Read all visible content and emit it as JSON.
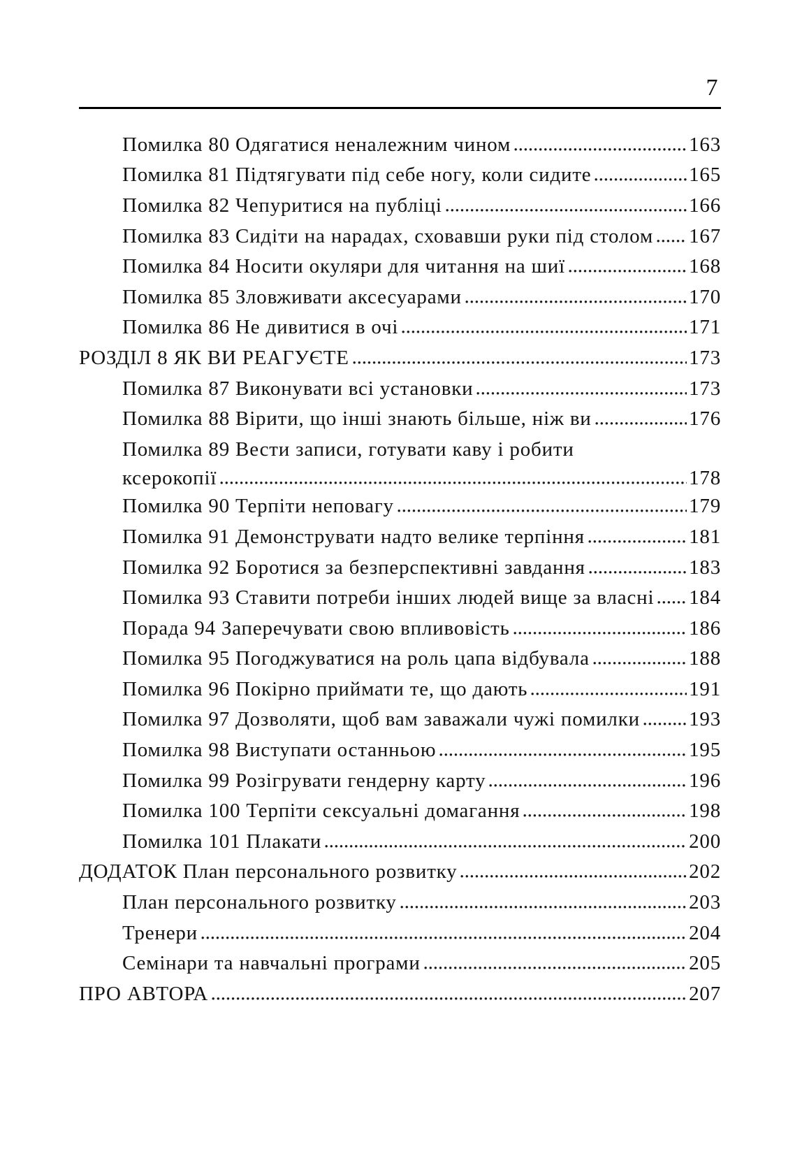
{
  "page_header": {
    "page_number": "7"
  },
  "toc": {
    "entries": [
      {
        "level": 1,
        "text": "Помилка 80 Одягатися неналежним чином",
        "page": "163"
      },
      {
        "level": 1,
        "text": "Помилка 81 Підтягувати під себе ногу, коли сидите",
        "page": "165"
      },
      {
        "level": 1,
        "text": "Помилка 82 Чепуритися на публіці",
        "page": "166"
      },
      {
        "level": 1,
        "text": "Помилка 83 Сидіти на нарадах, сховавши руки під столом",
        "page": "167"
      },
      {
        "level": 1,
        "text": "Помилка 84 Носити окуляри для читання на шиї",
        "page": "168"
      },
      {
        "level": 1,
        "text": "Помилка 85 Зловживати аксесуарами",
        "page": "170"
      },
      {
        "level": 1,
        "text": "Помилка 86 Не дивитися в очі",
        "page": "171"
      },
      {
        "level": 0,
        "text": "РОЗДІЛ 8 ЯК ВИ РЕАГУЄТЕ",
        "page": "173"
      },
      {
        "level": 1,
        "text": "Помилка 87 Виконувати всі установки",
        "page": "173"
      },
      {
        "level": 1,
        "text": "Помилка 88 Вірити, що інші знають більше, ніж ви",
        "page": "176"
      },
      {
        "level": 1,
        "text": "Помилка 89 Вести записи, готувати каву і робити",
        "text_line2": "ксерокопії",
        "page": "178"
      },
      {
        "level": 1,
        "text": "Помилка 90 Терпіти неповагу",
        "page": "179"
      },
      {
        "level": 1,
        "text": "Помилка 91 Демонструвати надто велике терпіння",
        "page": "181"
      },
      {
        "level": 1,
        "text": "Помилка 92 Боротися за безперспективні завдання",
        "page": "183"
      },
      {
        "level": 1,
        "text": "Помилка 93 Ставити потреби інших людей вище за власні",
        "page": "184"
      },
      {
        "level": 1,
        "text": "Порада 94 Заперечувати свою впливовість",
        "page": "186"
      },
      {
        "level": 1,
        "text": "Помилка 95 Погоджуватися на роль цапа відбувала",
        "page": "188"
      },
      {
        "level": 1,
        "text": "Помилка 96 Покірно приймати те, що дають",
        "page": "191"
      },
      {
        "level": 1,
        "text": "Помилка 97 Дозволяти, щоб вам заважали чужі помилки",
        "page": "193"
      },
      {
        "level": 1,
        "text": "Помилка 98 Виступати останньою",
        "page": "195"
      },
      {
        "level": 1,
        "text": "Помилка 99 Розігрувати гендерну карту",
        "page": "196"
      },
      {
        "level": 1,
        "text": "Помилка 100 Терпіти сексуальні домагання",
        "page": "198"
      },
      {
        "level": 1,
        "text": "Помилка 101 Плакати",
        "page": "200"
      },
      {
        "level": 0,
        "text": "ДОДАТОК План персонального розвитку",
        "page": "202"
      },
      {
        "level": 1,
        "text": "План персонального розвитку",
        "page": "203"
      },
      {
        "level": 1,
        "text": "Тренери",
        "page": "204"
      },
      {
        "level": 1,
        "text": "Семінари та навчальні програми",
        "page": "205"
      },
      {
        "level": 0,
        "text": "ПРО АВТОРА",
        "page": "207"
      }
    ]
  },
  "colors": {
    "text": "#131313",
    "rule": "#000000",
    "background": "#ffffff"
  }
}
